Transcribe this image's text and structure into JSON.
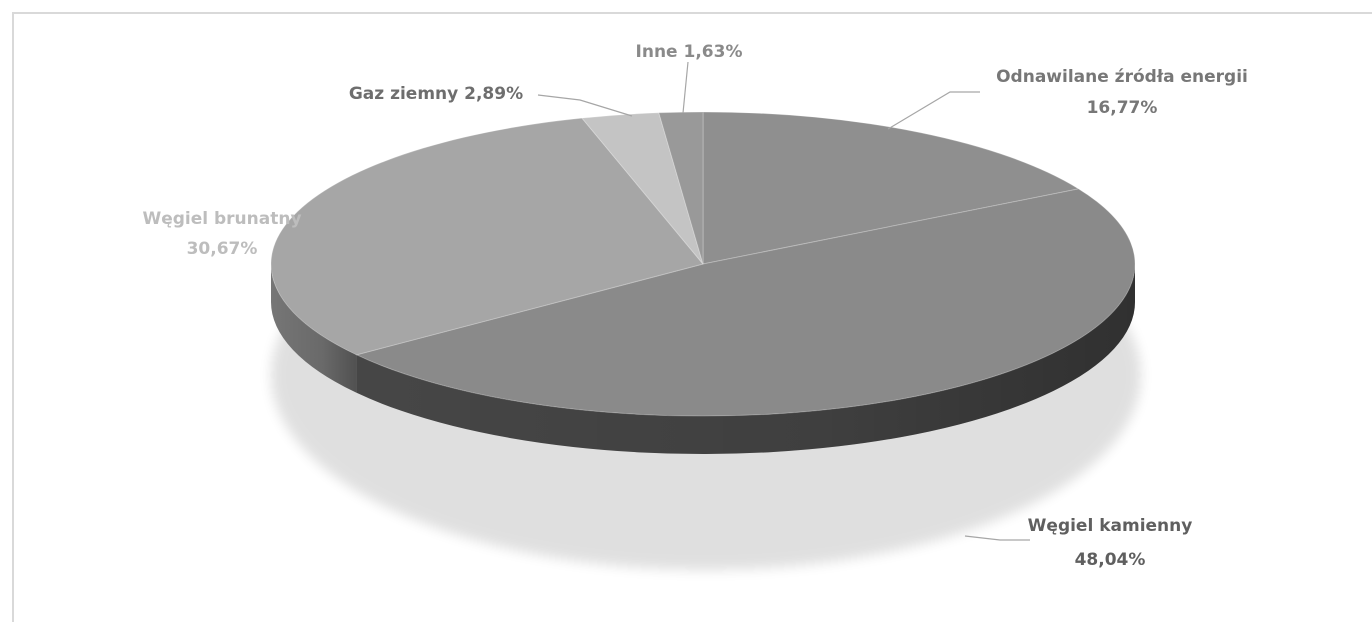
{
  "chart_data": {
    "type": "pie",
    "slices": [
      {
        "label": "Węgiel kamienny",
        "pct_text": "48,04%",
        "value": 48.04,
        "color": "#8a8a8a",
        "side_color": "#4a4a4a"
      },
      {
        "label": "Węgiel brunatny",
        "pct_text": "30,67%",
        "value": 30.67,
        "color": "#a6a6a6",
        "side_color": "#7c7c7c"
      },
      {
        "label": "Gaz ziemny",
        "pct_text": "2,89%",
        "value": 2.89,
        "color": "#c4c4c4",
        "side_color": "#9e9e9e"
      },
      {
        "label": "Inne",
        "pct_text": "1,63%",
        "value": 1.63,
        "color": "#999999",
        "side_color": "#6e6e6e"
      },
      {
        "label": "Odnawilane źródła energii",
        "pct_text": "16,77%",
        "value": 16.77,
        "color": "#8f8f8f",
        "side_color": "#5a5a5a"
      }
    ],
    "label_colors": {
      "Węgiel kamienny": "#5f5f5f",
      "Węgiel brunatny": "#bdbdbd",
      "Gaz ziemny": "#6e6e6e",
      "Inne": "#8a8a8a",
      "Odnawilane źródła energii": "#777777"
    }
  }
}
